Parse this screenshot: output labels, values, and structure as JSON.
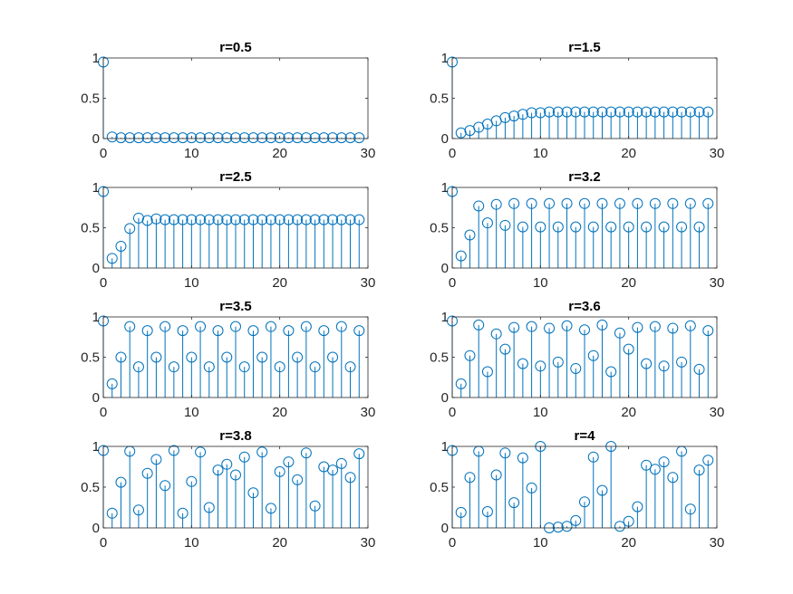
{
  "figure": {
    "colors": {
      "stem": "#0072BD",
      "axes": "#262626",
      "background": "#ffffff"
    }
  },
  "chart_data": [
    {
      "type": "stem",
      "title": "r=0.5",
      "xlim": [
        0,
        30
      ],
      "ylim": [
        0,
        1
      ],
      "xticks": [
        0,
        10,
        20,
        30
      ],
      "xtick_labels": [
        "0",
        "10",
        "20",
        "30"
      ],
      "yticks": [
        0,
        0.5,
        1
      ],
      "ytick_labels": [
        "0",
        "0.5",
        "1"
      ],
      "grid": false,
      "x": [
        0,
        1,
        2,
        3,
        4,
        5,
        6,
        7,
        8,
        9,
        10,
        11,
        12,
        13,
        14,
        15,
        16,
        17,
        18,
        19,
        20,
        21,
        22,
        23,
        24,
        25,
        26,
        27,
        28,
        29
      ],
      "y": [
        0.95,
        0.02,
        0.01,
        0.01,
        0.01,
        0.01,
        0.01,
        0.01,
        0.01,
        0.01,
        0.01,
        0.01,
        0.01,
        0.01,
        0.01,
        0.01,
        0.01,
        0.01,
        0.01,
        0.01,
        0.01,
        0.01,
        0.01,
        0.01,
        0.01,
        0.01,
        0.01,
        0.01,
        0.01,
        0.01
      ]
    },
    {
      "type": "stem",
      "title": "r=1.5",
      "xlim": [
        0,
        30
      ],
      "ylim": [
        0,
        1
      ],
      "xticks": [
        0,
        10,
        20,
        30
      ],
      "xtick_labels": [
        "0",
        "10",
        "20",
        "30"
      ],
      "yticks": [
        0,
        0.5,
        1
      ],
      "ytick_labels": [
        "0",
        "0.5",
        "1"
      ],
      "grid": false,
      "x": [
        0,
        1,
        2,
        3,
        4,
        5,
        6,
        7,
        8,
        9,
        10,
        11,
        12,
        13,
        14,
        15,
        16,
        17,
        18,
        19,
        20,
        21,
        22,
        23,
        24,
        25,
        26,
        27,
        28,
        29
      ],
      "y": [
        0.95,
        0.07,
        0.1,
        0.14,
        0.18,
        0.22,
        0.26,
        0.28,
        0.3,
        0.32,
        0.32,
        0.33,
        0.33,
        0.33,
        0.33,
        0.33,
        0.33,
        0.33,
        0.33,
        0.33,
        0.33,
        0.33,
        0.33,
        0.33,
        0.33,
        0.33,
        0.33,
        0.33,
        0.33,
        0.33
      ]
    },
    {
      "type": "stem",
      "title": "r=2.5",
      "xlim": [
        0,
        30
      ],
      "ylim": [
        0,
        1
      ],
      "xticks": [
        0,
        10,
        20,
        30
      ],
      "xtick_labels": [
        "0",
        "10",
        "20",
        "30"
      ],
      "yticks": [
        0,
        0.5,
        1
      ],
      "ytick_labels": [
        "0",
        "0.5",
        "1"
      ],
      "grid": false,
      "x": [
        0,
        1,
        2,
        3,
        4,
        5,
        6,
        7,
        8,
        9,
        10,
        11,
        12,
        13,
        14,
        15,
        16,
        17,
        18,
        19,
        20,
        21,
        22,
        23,
        24,
        25,
        26,
        27,
        28,
        29
      ],
      "y": [
        0.95,
        0.12,
        0.27,
        0.49,
        0.62,
        0.59,
        0.61,
        0.6,
        0.6,
        0.6,
        0.6,
        0.6,
        0.6,
        0.6,
        0.6,
        0.6,
        0.6,
        0.6,
        0.6,
        0.6,
        0.6,
        0.6,
        0.6,
        0.6,
        0.6,
        0.6,
        0.6,
        0.6,
        0.6,
        0.6
      ]
    },
    {
      "type": "stem",
      "title": "r=3.2",
      "xlim": [
        0,
        30
      ],
      "ylim": [
        0,
        1
      ],
      "xticks": [
        0,
        10,
        20,
        30
      ],
      "xtick_labels": [
        "0",
        "10",
        "20",
        "30"
      ],
      "yticks": [
        0,
        0.5,
        1
      ],
      "ytick_labels": [
        "0",
        "0.5",
        "1"
      ],
      "grid": false,
      "x": [
        0,
        1,
        2,
        3,
        4,
        5,
        6,
        7,
        8,
        9,
        10,
        11,
        12,
        13,
        14,
        15,
        16,
        17,
        18,
        19,
        20,
        21,
        22,
        23,
        24,
        25,
        26,
        27,
        28,
        29
      ],
      "y": [
        0.95,
        0.15,
        0.41,
        0.77,
        0.56,
        0.79,
        0.53,
        0.8,
        0.51,
        0.8,
        0.51,
        0.8,
        0.51,
        0.8,
        0.51,
        0.8,
        0.51,
        0.8,
        0.51,
        0.8,
        0.51,
        0.8,
        0.51,
        0.8,
        0.51,
        0.8,
        0.51,
        0.8,
        0.51,
        0.8
      ]
    },
    {
      "type": "stem",
      "title": "r=3.5",
      "xlim": [
        0,
        30
      ],
      "ylim": [
        0,
        1
      ],
      "xticks": [
        0,
        10,
        20,
        30
      ],
      "xtick_labels": [
        "0",
        "10",
        "20",
        "30"
      ],
      "yticks": [
        0,
        0.5,
        1
      ],
      "ytick_labels": [
        "0",
        "0.5",
        "1"
      ],
      "grid": false,
      "x": [
        0,
        1,
        2,
        3,
        4,
        5,
        6,
        7,
        8,
        9,
        10,
        11,
        12,
        13,
        14,
        15,
        16,
        17,
        18,
        19,
        20,
        21,
        22,
        23,
        24,
        25,
        26,
        27,
        28,
        29
      ],
      "y": [
        0.95,
        0.17,
        0.5,
        0.88,
        0.38,
        0.83,
        0.5,
        0.88,
        0.38,
        0.83,
        0.5,
        0.88,
        0.38,
        0.83,
        0.5,
        0.88,
        0.38,
        0.83,
        0.5,
        0.88,
        0.38,
        0.83,
        0.5,
        0.88,
        0.38,
        0.83,
        0.5,
        0.88,
        0.38,
        0.83
      ]
    },
    {
      "type": "stem",
      "title": "r=3.6",
      "xlim": [
        0,
        30
      ],
      "ylim": [
        0,
        1
      ],
      "xticks": [
        0,
        10,
        20,
        30
      ],
      "xtick_labels": [
        "0",
        "10",
        "20",
        "30"
      ],
      "yticks": [
        0,
        0.5,
        1
      ],
      "ytick_labels": [
        "0",
        "0.5",
        "1"
      ],
      "grid": false,
      "x": [
        0,
        1,
        2,
        3,
        4,
        5,
        6,
        7,
        8,
        9,
        10,
        11,
        12,
        13,
        14,
        15,
        16,
        17,
        18,
        19,
        20,
        21,
        22,
        23,
        24,
        25,
        26,
        27,
        28,
        29
      ],
      "y": [
        0.95,
        0.17,
        0.52,
        0.9,
        0.32,
        0.79,
        0.6,
        0.87,
        0.42,
        0.88,
        0.39,
        0.86,
        0.44,
        0.89,
        0.36,
        0.84,
        0.52,
        0.9,
        0.32,
        0.8,
        0.6,
        0.87,
        0.42,
        0.88,
        0.39,
        0.86,
        0.44,
        0.89,
        0.35,
        0.83
      ]
    },
    {
      "type": "stem",
      "title": "r=3.8",
      "xlim": [
        0,
        30
      ],
      "ylim": [
        0,
        1
      ],
      "xticks": [
        0,
        10,
        20,
        30
      ],
      "xtick_labels": [
        "0",
        "10",
        "20",
        "30"
      ],
      "yticks": [
        0,
        0.5,
        1
      ],
      "ytick_labels": [
        "0",
        "0.5",
        "1"
      ],
      "grid": false,
      "x": [
        0,
        1,
        2,
        3,
        4,
        5,
        6,
        7,
        8,
        9,
        10,
        11,
        12,
        13,
        14,
        15,
        16,
        17,
        18,
        19,
        20,
        21,
        22,
        23,
        24,
        25,
        26,
        27,
        28,
        29
      ],
      "y": [
        0.95,
        0.18,
        0.56,
        0.94,
        0.22,
        0.67,
        0.84,
        0.52,
        0.95,
        0.18,
        0.57,
        0.93,
        0.25,
        0.71,
        0.78,
        0.65,
        0.87,
        0.43,
        0.93,
        0.24,
        0.69,
        0.81,
        0.59,
        0.92,
        0.27,
        0.75,
        0.71,
        0.79,
        0.62,
        0.91
      ]
    },
    {
      "type": "stem",
      "title": "r=4",
      "xlim": [
        0,
        30
      ],
      "ylim": [
        0,
        1
      ],
      "xticks": [
        0,
        10,
        20,
        30
      ],
      "xtick_labels": [
        "0",
        "10",
        "20",
        "30"
      ],
      "yticks": [
        0,
        0.5,
        1
      ],
      "ytick_labels": [
        "0",
        "0.5",
        "1"
      ],
      "grid": false,
      "x": [
        0,
        1,
        2,
        3,
        4,
        5,
        6,
        7,
        8,
        9,
        10,
        11,
        12,
        13,
        14,
        15,
        16,
        17,
        18,
        19,
        20,
        21,
        22,
        23,
        24,
        25,
        26,
        27,
        28,
        29
      ],
      "y": [
        0.95,
        0.19,
        0.62,
        0.94,
        0.2,
        0.65,
        0.92,
        0.31,
        0.86,
        0.49,
        1.0,
        0.0,
        0.01,
        0.02,
        0.09,
        0.32,
        0.87,
        0.46,
        1.0,
        0.02,
        0.08,
        0.26,
        0.77,
        0.72,
        0.81,
        0.62,
        0.94,
        0.23,
        0.71,
        0.83
      ]
    }
  ]
}
